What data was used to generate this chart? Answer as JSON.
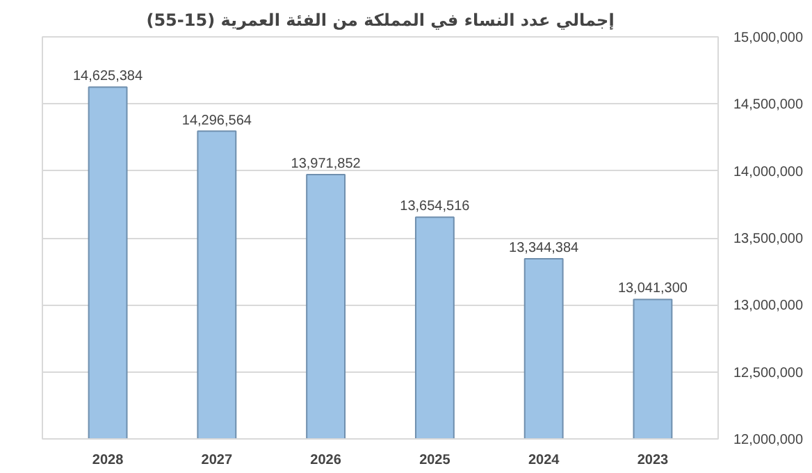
{
  "chart_data": {
    "type": "bar",
    "title": "إجمالي عدد النساء في المملكة من الفئة العمرية (15-55)",
    "categories": [
      "2028",
      "2027",
      "2026",
      "2025",
      "2024",
      "2023"
    ],
    "values": [
      14625384,
      14296564,
      13971852,
      13654516,
      13344384,
      13041300
    ],
    "value_labels": [
      "14,625,384",
      "14,296,564",
      "13,971,852",
      "13,654,516",
      "13,344,384",
      "13,041,300"
    ],
    "color": "#9dc3e6",
    "ylim": [
      12000000,
      15000000
    ],
    "yticks": [
      {
        "value": 12000000,
        "label": "12,000,000"
      },
      {
        "value": 12500000,
        "label": "12,500,000"
      },
      {
        "value": 13000000,
        "label": "13,000,000"
      },
      {
        "value": 13500000,
        "label": "13,500,000"
      },
      {
        "value": 14000000,
        "label": "14,000,000"
      },
      {
        "value": 14500000,
        "label": "14,500,000"
      },
      {
        "value": 15000000,
        "label": "15,000,000"
      }
    ],
    "grid": "y"
  }
}
